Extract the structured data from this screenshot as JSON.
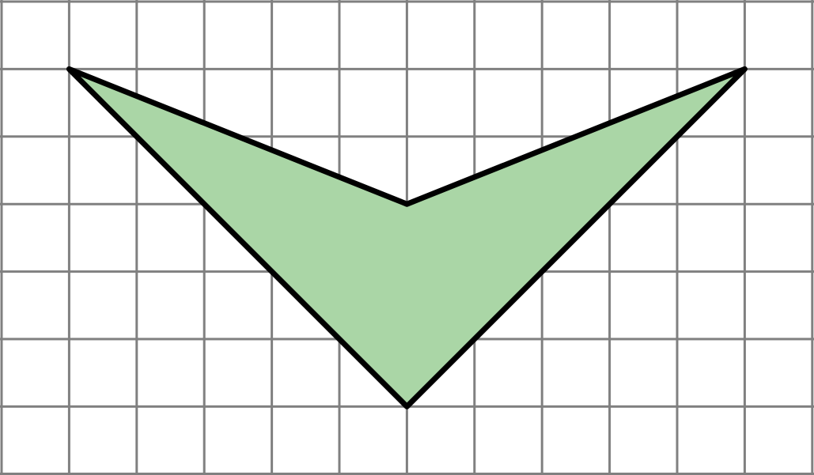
{
  "diagram": {
    "type": "polygon-on-grid",
    "grid": {
      "columns": 12,
      "rows": 7,
      "line_color": "#808080"
    },
    "shape": {
      "name": "arrowhead",
      "vertices": [
        [
          1,
          1
        ],
        [
          6,
          3
        ],
        [
          11,
          1
        ],
        [
          6,
          6
        ]
      ],
      "fill_color": "#aad6a6",
      "stroke_color": "#000000"
    }
  }
}
